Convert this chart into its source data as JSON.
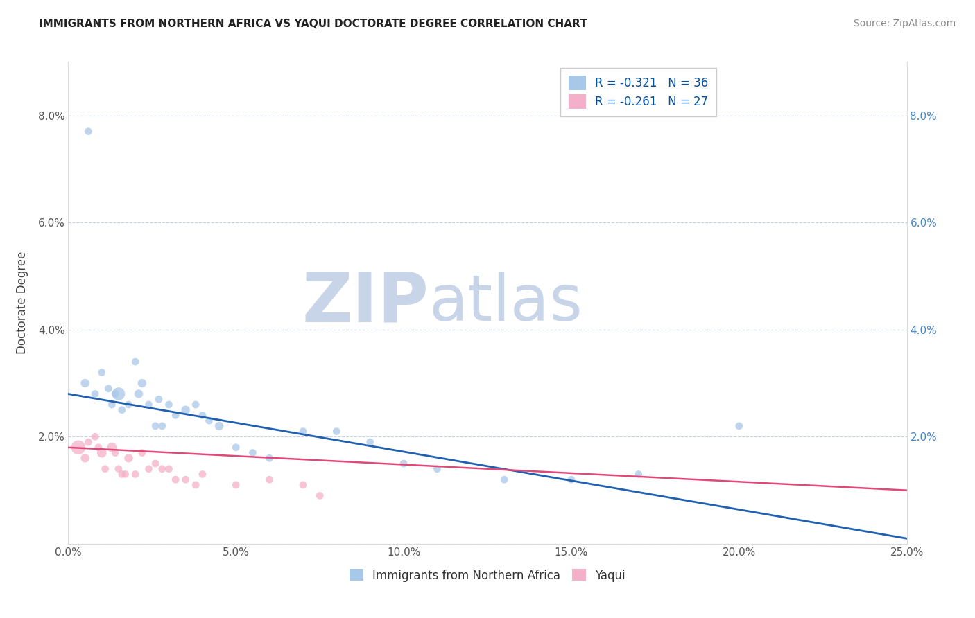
{
  "title": "IMMIGRANTS FROM NORTHERN AFRICA VS YAQUI DOCTORATE DEGREE CORRELATION CHART",
  "source": "Source: ZipAtlas.com",
  "xlabel_blue": "Immigrants from Northern Africa",
  "xlabel_pink": "Yaqui",
  "ylabel": "Doctorate Degree",
  "legend_blue_R": -0.321,
  "legend_blue_N": 36,
  "legend_pink_R": -0.261,
  "legend_pink_N": 27,
  "xlim": [
    0.0,
    0.25
  ],
  "ylim": [
    0.0,
    0.09
  ],
  "xticks": [
    0.0,
    0.05,
    0.1,
    0.15,
    0.2,
    0.25
  ],
  "yticks": [
    0.0,
    0.02,
    0.04,
    0.06,
    0.08
  ],
  "blue_color": "#a8c8e8",
  "pink_color": "#f4b0c8",
  "blue_line_color": "#2060b0",
  "pink_line_color": "#e04878",
  "watermark_zip": "ZIP",
  "watermark_atlas": "atlas",
  "watermark_color_zip": "#c8d4e8",
  "watermark_color_atlas": "#c8d4e8",
  "background_color": "#ffffff",
  "grid_color": "#c8d0e0",
  "blue_x": [
    0.005,
    0.008,
    0.01,
    0.012,
    0.013,
    0.014,
    0.015,
    0.016,
    0.018,
    0.02,
    0.021,
    0.022,
    0.024,
    0.026,
    0.027,
    0.028,
    0.03,
    0.032,
    0.035,
    0.038,
    0.04,
    0.042,
    0.045,
    0.05,
    0.055,
    0.06,
    0.07,
    0.08,
    0.09,
    0.1,
    0.11,
    0.13,
    0.15,
    0.17,
    0.2,
    0.006
  ],
  "blue_y": [
    0.03,
    0.028,
    0.032,
    0.029,
    0.026,
    0.028,
    0.028,
    0.025,
    0.026,
    0.034,
    0.028,
    0.03,
    0.026,
    0.022,
    0.027,
    0.022,
    0.026,
    0.024,
    0.025,
    0.026,
    0.024,
    0.023,
    0.022,
    0.018,
    0.017,
    0.016,
    0.021,
    0.021,
    0.019,
    0.015,
    0.014,
    0.012,
    0.012,
    0.013,
    0.022,
    0.077
  ],
  "blue_size": [
    80,
    60,
    60,
    60,
    60,
    60,
    180,
    60,
    60,
    60,
    80,
    80,
    60,
    60,
    60,
    60,
    60,
    60,
    80,
    60,
    60,
    60,
    80,
    60,
    60,
    60,
    60,
    60,
    60,
    60,
    60,
    60,
    60,
    60,
    60,
    60
  ],
  "pink_x": [
    0.003,
    0.005,
    0.006,
    0.008,
    0.009,
    0.01,
    0.011,
    0.013,
    0.014,
    0.015,
    0.016,
    0.017,
    0.018,
    0.02,
    0.022,
    0.024,
    0.026,
    0.028,
    0.03,
    0.032,
    0.035,
    0.038,
    0.04,
    0.05,
    0.06,
    0.07,
    0.075
  ],
  "pink_y": [
    0.018,
    0.016,
    0.019,
    0.02,
    0.018,
    0.017,
    0.014,
    0.018,
    0.017,
    0.014,
    0.013,
    0.013,
    0.016,
    0.013,
    0.017,
    0.014,
    0.015,
    0.014,
    0.014,
    0.012,
    0.012,
    0.011,
    0.013,
    0.011,
    0.012,
    0.011,
    0.009
  ],
  "pink_size": [
    220,
    80,
    60,
    60,
    60,
    100,
    60,
    100,
    60,
    60,
    60,
    60,
    80,
    60,
    60,
    60,
    60,
    60,
    60,
    60,
    60,
    60,
    60,
    60,
    60,
    60,
    60
  ]
}
